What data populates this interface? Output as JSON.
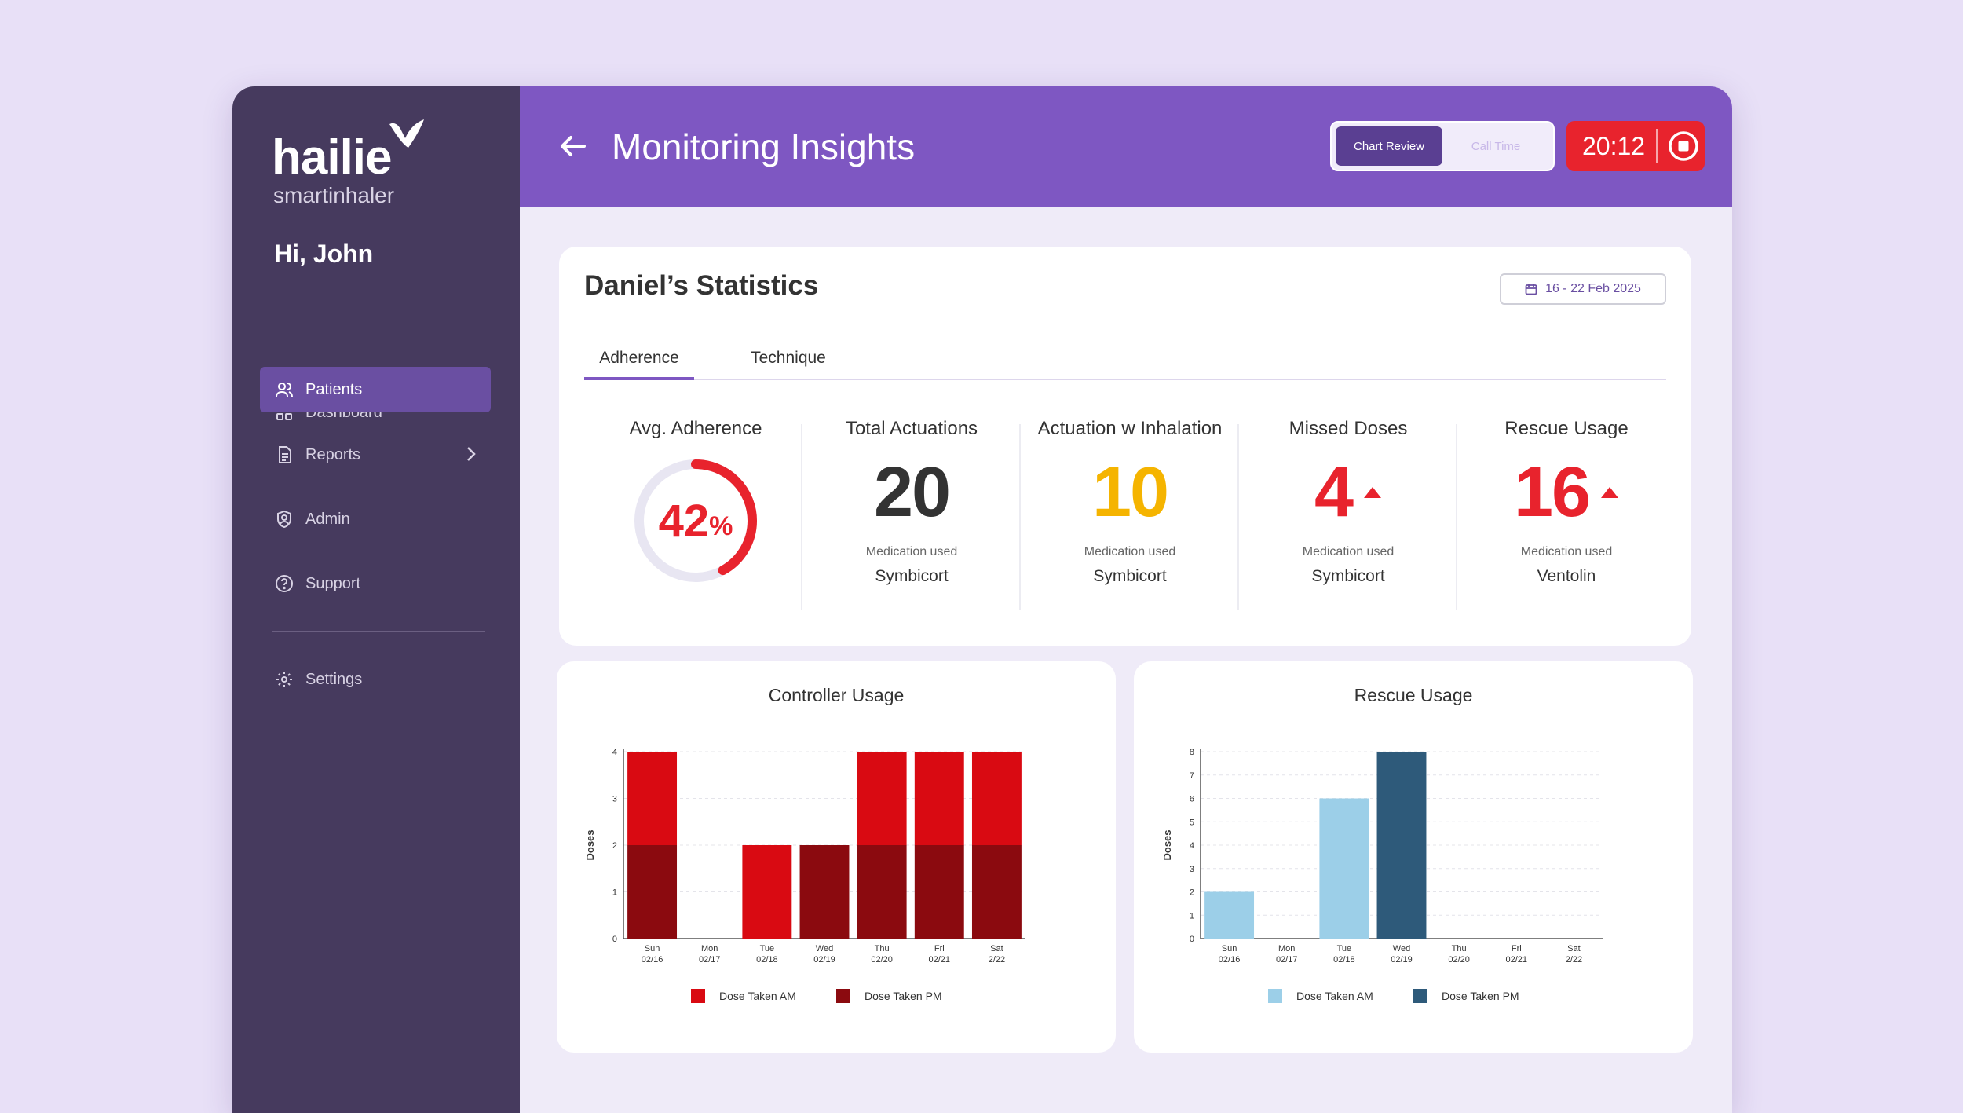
{
  "brand": {
    "name": "hailie",
    "tagline": "smartinhaler"
  },
  "sidebar": {
    "greeting": "Hi, John",
    "items": [
      {
        "label": "Dashboard",
        "icon": "grid-icon"
      },
      {
        "label": "Patients",
        "icon": "users-icon",
        "active": true
      },
      {
        "label": "Reports",
        "icon": "document-icon",
        "has_submenu": true
      },
      {
        "label": "Admin",
        "icon": "shield-user-icon"
      },
      {
        "label": "Support",
        "icon": "help-circle-icon"
      },
      {
        "label": "Settings",
        "icon": "gear-icon"
      }
    ]
  },
  "header": {
    "title": "Monitoring Insights",
    "segments": [
      {
        "label": "Chart Review",
        "selected": true
      },
      {
        "label": "Call Time",
        "selected": false
      }
    ],
    "timer": "20:12"
  },
  "stats": {
    "title": "Daniel’s Statistics",
    "date_range": "16 - 22 Feb 2025",
    "tabs": [
      {
        "label": "Adherence",
        "selected": true
      },
      {
        "label": "Technique",
        "selected": false
      }
    ],
    "avg_adherence": {
      "label": "Avg. Adherence",
      "value": "42",
      "unit": "%",
      "fraction": 0.42,
      "color": "#e8232d"
    },
    "cards": [
      {
        "label": "Total Actuations",
        "value": "20",
        "sub": "Medication used",
        "medication": "Symbicort",
        "color": "#333333",
        "trend": ""
      },
      {
        "label": "Actuation w Inhalation",
        "value": "10",
        "sub": "Medication used",
        "medication": "Symbicort",
        "color": "#f5b400",
        "trend": ""
      },
      {
        "label": "Missed Doses",
        "value": "4",
        "sub": "Medication used",
        "medication": "Symbicort",
        "color": "#e8232d",
        "trend": "up"
      },
      {
        "label": "Rescue Usage",
        "value": "16",
        "sub": "Medication used",
        "medication": "Ventolin",
        "color": "#e8232d",
        "trend": "up"
      }
    ]
  },
  "chart_data": [
    {
      "type": "bar",
      "stacked": true,
      "title": "Controller Usage",
      "ylabel": "Doses",
      "ylim": [
        0,
        4
      ],
      "yticks": [
        0,
        1,
        2,
        3,
        4
      ],
      "categories": [
        "Sun 02/16",
        "Mon 02/17",
        "Tue 02/18",
        "Wed 02/19",
        "Thu 02/20",
        "Fri 02/21",
        "Sat 2/22"
      ],
      "series": [
        {
          "name": "Dose Taken PM",
          "color": "#8b0a0f",
          "values": [
            2,
            0,
            0,
            2,
            2,
            2,
            2
          ]
        },
        {
          "name": "Dose Taken AM",
          "color": "#d90a12",
          "values": [
            2,
            0,
            2,
            0,
            2,
            2,
            2
          ]
        }
      ],
      "legend": [
        "Dose Taken AM",
        "Dose Taken PM"
      ],
      "legend_colors": [
        "#d90a12",
        "#8b0a0f"
      ]
    },
    {
      "type": "bar",
      "stacked": true,
      "title": "Rescue Usage",
      "ylabel": "Doses",
      "ylim": [
        0,
        8
      ],
      "yticks": [
        0,
        1,
        2,
        3,
        4,
        5,
        6,
        7,
        8
      ],
      "categories": [
        "Sun 02/16",
        "Mon 02/17",
        "Tue 02/18",
        "Wed 02/19",
        "Thu 02/20",
        "Fri 02/21",
        "Sat 2/22"
      ],
      "series": [
        {
          "name": "Dose Taken AM",
          "color": "#9ccfe8",
          "values": [
            2,
            0,
            6,
            0,
            0,
            0,
            0
          ]
        },
        {
          "name": "Dose Taken PM",
          "color": "#2e5a7a",
          "values": [
            0,
            0,
            0,
            8,
            0,
            0,
            0
          ]
        }
      ],
      "legend": [
        "Dose Taken AM",
        "Dose Taken PM"
      ],
      "legend_colors": [
        "#9ccfe8",
        "#2e5a7a"
      ]
    }
  ]
}
